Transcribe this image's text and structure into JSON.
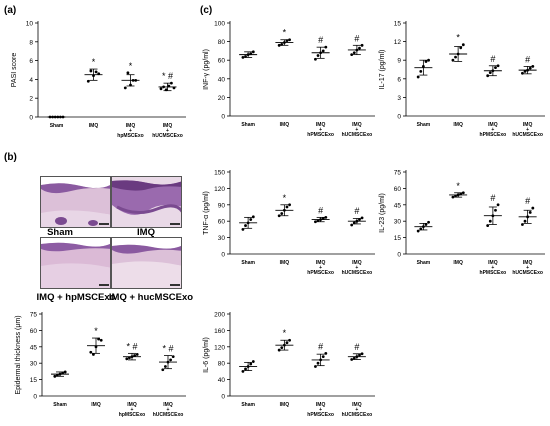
{
  "panels": {
    "a": "(a)",
    "b": "(b)",
    "c": "(c)"
  },
  "micrographs": [
    {
      "label": "Sham"
    },
    {
      "label": "IMQ"
    },
    {
      "label": "IMQ + hpMSCExo"
    },
    {
      "label": "IMQ + hucMSCExo"
    }
  ],
  "colors": {
    "tissue_pink": "#dcc0d8",
    "tissue_purple": "#7a4a90",
    "tissue_background": "#ffffff"
  },
  "chart_data": [
    {
      "id": "pasi",
      "type": "scatter",
      "ylabel": "PASI score",
      "ylim": [
        0,
        10
      ],
      "yticks": [
        0,
        2,
        4,
        6,
        8,
        10
      ],
      "categories": [
        "Sham",
        "IMQ",
        "IMQ\n+\nhpMSCExo",
        "IMQ\n+\nhUCMSCExo"
      ],
      "means": [
        0,
        4.5,
        3.9,
        3.2
      ],
      "sd": [
        0,
        0.6,
        0.6,
        0.4
      ],
      "points": [
        [
          0,
          0,
          0,
          0,
          0,
          0
        ],
        [
          3.8,
          4.9,
          4.4,
          4.8,
          4.6
        ],
        [
          3.1,
          4.7,
          3.4,
          3.9,
          3.9
        ],
        [
          3.0,
          3.2,
          2.9,
          3.3,
          3.6,
          3.1
        ]
      ],
      "annotations": [
        "",
        "*",
        "*",
        "* #"
      ]
    },
    {
      "id": "thickness",
      "type": "scatter",
      "ylabel": "Epidermal thickness (μm)",
      "ylim": [
        0,
        75
      ],
      "yticks": [
        0,
        15,
        30,
        45,
        60,
        75
      ],
      "categories": [
        "Sham",
        "IMQ",
        "IMQ\n+\nhpMSCExo",
        "IMQ\n+\nhUCMSCExo"
      ],
      "means": [
        20,
        46,
        36,
        31
      ],
      "sd": [
        2,
        7,
        3,
        6
      ],
      "points": [
        [
          18,
          19,
          20,
          21,
          22
        ],
        [
          40,
          38,
          45,
          52,
          51
        ],
        [
          34,
          35,
          36,
          37,
          38
        ],
        [
          24,
          27,
          31,
          33,
          36
        ]
      ],
      "annotations": [
        "",
        "*",
        "* #",
        "* #"
      ]
    },
    {
      "id": "ifn",
      "type": "scatter",
      "ylabel": "INF-γ (pg/ml)",
      "ylim": [
        0,
        100
      ],
      "yticks": [
        0,
        20,
        40,
        60,
        80,
        100
      ],
      "categories": [
        "Sham",
        "IMQ",
        "IMQ\n+\nhPMSCExo",
        "IMQ\n+\nhUCMSCExo"
      ],
      "means": [
        66,
        79,
        68,
        71
      ],
      "sd": [
        3,
        3,
        6,
        5
      ],
      "points": [
        [
          63,
          64,
          66,
          67,
          69
        ],
        [
          76,
          77,
          79,
          81,
          82
        ],
        [
          61,
          65,
          68,
          70,
          74
        ],
        [
          66,
          68,
          71,
          73,
          76
        ]
      ],
      "annotations": [
        "",
        "*",
        "#",
        "#"
      ]
    },
    {
      "id": "il17",
      "type": "scatter",
      "ylabel": "IL-17 (pg/ml)",
      "ylim": [
        0,
        15
      ],
      "yticks": [
        0,
        3,
        6,
        9,
        12,
        15
      ],
      "categories": [
        "Sham",
        "IMQ",
        "IMQ\n+\nhPMSCExo",
        "IMQ\n+\nhUCMSCExo"
      ],
      "means": [
        7.8,
        10,
        7.3,
        7.4
      ],
      "sd": [
        1.2,
        1.2,
        0.8,
        0.6
      ],
      "points": [
        [
          6.3,
          7.2,
          8.0,
          8.8,
          9.0
        ],
        [
          9.0,
          9.5,
          10.0,
          11.0,
          11.5
        ],
        [
          6.5,
          7.0,
          7.3,
          7.8,
          8.1
        ],
        [
          6.9,
          7.2,
          7.4,
          7.7,
          8.0
        ]
      ],
      "annotations": [
        "",
        "*",
        "#",
        "#"
      ]
    },
    {
      "id": "tnf",
      "type": "scatter",
      "ylabel": "TNF-α (pg/ml)",
      "ylim": [
        0,
        150
      ],
      "yticks": [
        0,
        30,
        60,
        90,
        120,
        150
      ],
      "categories": [
        "Sham",
        "IMQ",
        "IMQ\n+\nhPMSCExo",
        "IMQ\n+\nhUCMSCExo"
      ],
      "means": [
        57,
        80,
        63,
        60
      ],
      "sd": [
        10,
        10,
        4,
        5
      ],
      "points": [
        [
          45,
          52,
          57,
          63,
          68
        ],
        [
          70,
          74,
          80,
          86,
          90
        ],
        [
          59,
          61,
          63,
          65,
          67
        ],
        [
          53,
          57,
          60,
          63,
          66
        ]
      ],
      "annotations": [
        "",
        "*",
        "#",
        "#"
      ]
    },
    {
      "id": "il23",
      "type": "scatter",
      "ylabel": "IL-23 (pg/ml)",
      "ylim": [
        0,
        75
      ],
      "yticks": [
        0,
        15,
        30,
        45,
        60,
        75
      ],
      "categories": [
        "Sham",
        "IMQ",
        "IMQ\n+\nhPMSCExo",
        "IMQ\n+\nhUCMSCExo"
      ],
      "means": [
        25,
        54,
        35,
        34
      ],
      "sd": [
        3,
        2,
        8,
        6
      ],
      "points": [
        [
          21,
          23,
          25,
          27,
          29
        ],
        [
          52,
          53,
          54,
          55,
          56
        ],
        [
          26,
          30,
          35,
          40,
          45
        ],
        [
          27,
          30,
          34,
          38,
          42
        ]
      ],
      "annotations": [
        "",
        "*",
        "#",
        "#"
      ]
    },
    {
      "id": "il6",
      "type": "scatter",
      "ylabel": "IL-6 (pg/ml)",
      "ylim": [
        0,
        200
      ],
      "yticks": [
        0,
        40,
        80,
        120,
        160,
        200
      ],
      "categories": [
        "Sham",
        "IMQ",
        "IMQ\n+\nhPMSCExo",
        "IMQ\n+\nhUCMSCExo"
      ],
      "means": [
        72,
        124,
        88,
        96
      ],
      "sd": [
        10,
        12,
        14,
        7
      ],
      "points": [
        [
          60,
          66,
          72,
          78,
          84
        ],
        [
          112,
          118,
          124,
          130,
          136
        ],
        [
          72,
          80,
          88,
          96,
          104
        ],
        [
          89,
          92,
          96,
          100,
          103
        ]
      ],
      "annotations": [
        "",
        "*",
        "#",
        "#"
      ]
    }
  ]
}
